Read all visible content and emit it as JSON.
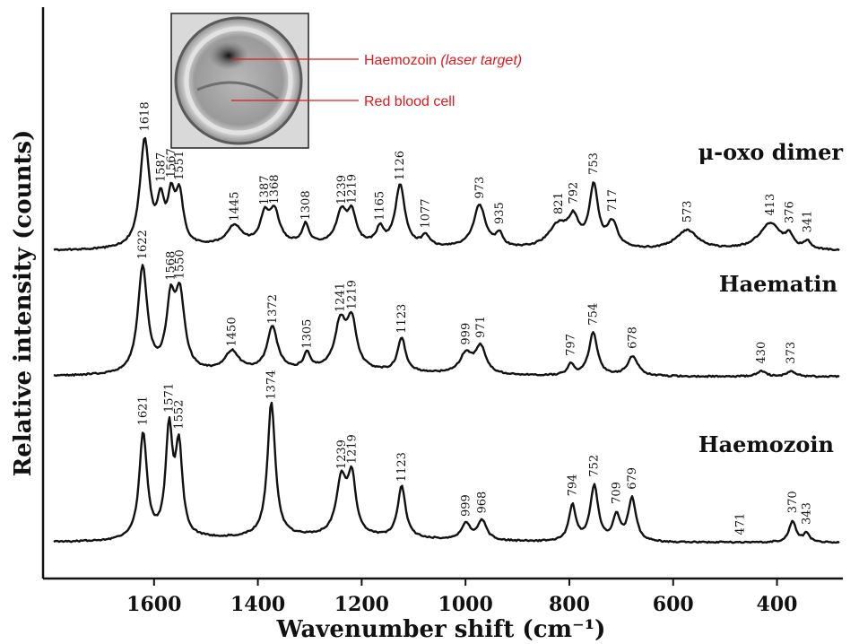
{
  "chart_data": {
    "type": "line",
    "title": "",
    "xlabel": "Wavenumber shift (cm⁻¹)",
    "ylabel": "Relative intensity (counts)",
    "xlim": [
      1800,
      280
    ],
    "x_reversed": true,
    "x_ticks": [
      "1600",
      "1400",
      "1200",
      "1000",
      "800",
      "600",
      "400"
    ],
    "y_ticks": "none",
    "grid": false,
    "legend": "none",
    "series": [
      {
        "name": "μ-oxo dimer",
        "baseline": 280,
        "peaks": [
          {
            "x": 1618,
            "h": 120,
            "w": 11,
            "label": "1618"
          },
          {
            "x": 1587,
            "h": 45,
            "w": 8,
            "label": "1587"
          },
          {
            "x": 1567,
            "h": 48,
            "w": 8,
            "label": "1567"
          },
          {
            "x": 1551,
            "h": 55,
            "w": 9,
            "label": "1551"
          },
          {
            "x": 1445,
            "h": 22,
            "w": 18,
            "label": "1445"
          },
          {
            "x": 1387,
            "h": 30,
            "w": 10,
            "label": "1387"
          },
          {
            "x": 1368,
            "h": 35,
            "w": 12,
            "label": "1368"
          },
          {
            "x": 1308,
            "h": 22,
            "w": 8,
            "label": "1308"
          },
          {
            "x": 1239,
            "h": 35,
            "w": 12,
            "label": "1239"
          },
          {
            "x": 1219,
            "h": 33,
            "w": 10,
            "label": "1219"
          },
          {
            "x": 1165,
            "h": 18,
            "w": 8,
            "label": "1165"
          },
          {
            "x": 1126,
            "h": 68,
            "w": 11,
            "label": "1126"
          },
          {
            "x": 1077,
            "h": 12,
            "w": 8,
            "label": "1077"
          },
          {
            "x": 973,
            "h": 48,
            "w": 14,
            "label": "973"
          },
          {
            "x": 935,
            "h": 14,
            "w": 8,
            "label": "935"
          },
          {
            "x": 821,
            "h": 26,
            "w": 24,
            "label": "821"
          },
          {
            "x": 792,
            "h": 28,
            "w": 12,
            "label": "792"
          },
          {
            "x": 753,
            "h": 68,
            "w": 10,
            "label": "753"
          },
          {
            "x": 717,
            "h": 28,
            "w": 12,
            "label": "717"
          },
          {
            "x": 573,
            "h": 22,
            "w": 26,
            "label": "573"
          },
          {
            "x": 413,
            "h": 30,
            "w": 26,
            "label": "413"
          },
          {
            "x": 376,
            "h": 12,
            "w": 8,
            "label": "376"
          },
          {
            "x": 341,
            "h": 8,
            "w": 8,
            "label": "341"
          }
        ]
      },
      {
        "name": "Haematin",
        "baseline": 420,
        "peaks": [
          {
            "x": 1622,
            "h": 118,
            "w": 11,
            "label": "1622"
          },
          {
            "x": 1568,
            "h": 72,
            "w": 10,
            "label": "1568"
          },
          {
            "x": 1550,
            "h": 80,
            "w": 11,
            "label": "1550"
          },
          {
            "x": 1450,
            "h": 22,
            "w": 16,
            "label": "1450"
          },
          {
            "x": 1372,
            "h": 48,
            "w": 12,
            "label": "1372"
          },
          {
            "x": 1305,
            "h": 18,
            "w": 8,
            "label": "1305"
          },
          {
            "x": 1241,
            "h": 52,
            "w": 13,
            "label": "1241"
          },
          {
            "x": 1219,
            "h": 52,
            "w": 11,
            "label": "1219"
          },
          {
            "x": 1123,
            "h": 38,
            "w": 9,
            "label": "1123"
          },
          {
            "x": 999,
            "h": 22,
            "w": 14,
            "label": "999"
          },
          {
            "x": 971,
            "h": 30,
            "w": 12,
            "label": "971"
          },
          {
            "x": 797,
            "h": 12,
            "w": 8,
            "label": "797"
          },
          {
            "x": 754,
            "h": 48,
            "w": 10,
            "label": "754"
          },
          {
            "x": 678,
            "h": 22,
            "w": 12,
            "label": "678"
          },
          {
            "x": 430,
            "h": 6,
            "w": 10,
            "label": "430"
          },
          {
            "x": 373,
            "h": 6,
            "w": 10,
            "label": "373"
          }
        ]
      },
      {
        "name": "Haemozoin",
        "baseline": 605,
        "peaks": [
          {
            "x": 1621,
            "h": 118,
            "w": 9,
            "label": "1621"
          },
          {
            "x": 1571,
            "h": 118,
            "w": 8,
            "label": "1571"
          },
          {
            "x": 1552,
            "h": 98,
            "w": 8,
            "label": "1552"
          },
          {
            "x": 1374,
            "h": 150,
            "w": 9,
            "label": "1374"
          },
          {
            "x": 1239,
            "h": 62,
            "w": 12,
            "label": "1239"
          },
          {
            "x": 1219,
            "h": 62,
            "w": 9,
            "label": "1219"
          },
          {
            "x": 1123,
            "h": 58,
            "w": 9,
            "label": "1123"
          },
          {
            "x": 999,
            "h": 18,
            "w": 10,
            "label": "999"
          },
          {
            "x": 968,
            "h": 22,
            "w": 10,
            "label": "968"
          },
          {
            "x": 794,
            "h": 40,
            "w": 8,
            "label": "794"
          },
          {
            "x": 752,
            "h": 62,
            "w": 9,
            "label": "752"
          },
          {
            "x": 709,
            "h": 28,
            "w": 8,
            "label": "709"
          },
          {
            "x": 679,
            "h": 48,
            "w": 9,
            "label": "679"
          },
          {
            "x": 471,
            "h": 0,
            "w": 8,
            "label": "471"
          },
          {
            "x": 370,
            "h": 24,
            "w": 8,
            "label": "370"
          },
          {
            "x": 343,
            "h": 10,
            "w": 7,
            "label": "343"
          }
        ]
      }
    ]
  },
  "inset": {
    "annotation_top": "Haemozoin",
    "annotation_top_italic": "(laser target)",
    "annotation_bottom": "Red blood cell"
  },
  "colors": {
    "annotation": "#e0191c",
    "line": "#111111"
  }
}
